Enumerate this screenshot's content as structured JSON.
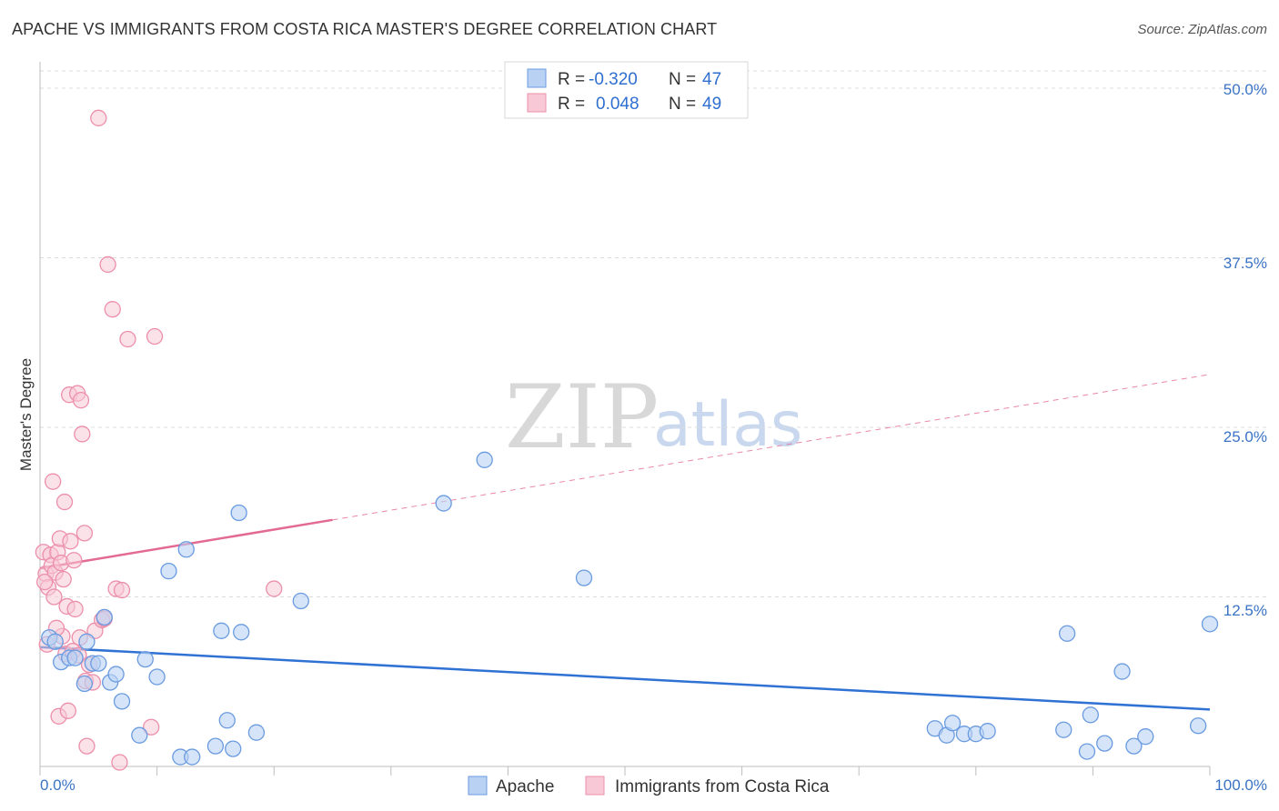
{
  "header": {
    "title": "APACHE VS IMMIGRANTS FROM COSTA RICA MASTER'S DEGREE CORRELATION CHART",
    "source": "Source: ZipAtlas.com"
  },
  "watermark": {
    "zip": "ZIP",
    "atlas": "atlas"
  },
  "legend": {
    "rows": [
      {
        "r_label": "R = ",
        "r_value": "-0.320",
        "n_label": "N = ",
        "n_value": "47"
      },
      {
        "r_label": "R = ",
        "r_value": "0.048",
        "n_label": "N = ",
        "n_value": "49"
      }
    ]
  },
  "chart_data": {
    "type": "scatter",
    "title": "APACHE VS IMMIGRANTS FROM COSTA RICA MASTER'S DEGREE CORRELATION CHART",
    "xlabel": "",
    "ylabel": "Master's Degree",
    "xlim": [
      0,
      100
    ],
    "ylim": [
      0,
      51
    ],
    "x_tick_labels": [
      "0.0%",
      "100.0%"
    ],
    "y_ticks": [
      12.5,
      25.0,
      37.5,
      50.0
    ],
    "y_tick_labels": [
      "12.5%",
      "25.0%",
      "37.5%",
      "50.0%"
    ],
    "grid": true,
    "legend_position": "top-center",
    "colors": {
      "apache_fill": "#b9d2f3",
      "apache_stroke": "#6a9be0",
      "apache_line": "#2f72d4",
      "costa_fill": "#f8c8d6",
      "costa_stroke": "#ec8fab",
      "costa_line": "#e36a93"
    },
    "series": [
      {
        "name": "Apache",
        "r": -0.32,
        "n": 47,
        "trend": {
          "x0": 0,
          "y0": 8.8,
          "x1": 100,
          "y1": 4.2,
          "solid_to": 100
        },
        "points": [
          [
            0.8,
            9.5
          ],
          [
            1.3,
            9.2
          ],
          [
            1.8,
            7.7
          ],
          [
            2.5,
            8.0
          ],
          [
            3.0,
            8.0
          ],
          [
            4.0,
            9.2
          ],
          [
            3.8,
            6.1
          ],
          [
            4.5,
            7.6
          ],
          [
            5.0,
            7.6
          ],
          [
            5.5,
            11.0
          ],
          [
            6.0,
            6.2
          ],
          [
            6.5,
            6.8
          ],
          [
            7.0,
            4.8
          ],
          [
            8.5,
            2.3
          ],
          [
            9.0,
            7.9
          ],
          [
            10.0,
            6.6
          ],
          [
            11.0,
            14.4
          ],
          [
            12.0,
            0.7
          ],
          [
            12.5,
            16.0
          ],
          [
            13.0,
            0.7
          ],
          [
            15.0,
            1.5
          ],
          [
            15.5,
            10.0
          ],
          [
            16.0,
            3.4
          ],
          [
            16.5,
            1.3
          ],
          [
            17.0,
            18.7
          ],
          [
            17.2,
            9.9
          ],
          [
            18.5,
            2.5
          ],
          [
            22.3,
            12.2
          ],
          [
            34.5,
            19.4
          ],
          [
            38.0,
            22.6
          ],
          [
            46.5,
            13.9
          ],
          [
            76.5,
            2.8
          ],
          [
            77.5,
            2.3
          ],
          [
            78.0,
            3.2
          ],
          [
            79.0,
            2.4
          ],
          [
            80.0,
            2.4
          ],
          [
            81.0,
            2.6
          ],
          [
            87.5,
            2.7
          ],
          [
            87.8,
            9.8
          ],
          [
            89.5,
            1.1
          ],
          [
            89.8,
            3.8
          ],
          [
            91.0,
            1.7
          ],
          [
            92.5,
            7.0
          ],
          [
            93.5,
            1.5
          ],
          [
            94.5,
            2.2
          ],
          [
            100.0,
            10.5
          ],
          [
            99.0,
            3.0
          ]
        ]
      },
      {
        "name": "Immigrants from Costa Rica",
        "r": 0.048,
        "n": 49,
        "trend": {
          "x0": 0,
          "y0": 14.6,
          "x1": 100,
          "y1": 28.9,
          "solid_to": 25
        },
        "points": [
          [
            0.3,
            15.8
          ],
          [
            0.5,
            14.2
          ],
          [
            0.7,
            13.2
          ],
          [
            0.9,
            15.6
          ],
          [
            1.0,
            14.8
          ],
          [
            1.1,
            21.0
          ],
          [
            1.2,
            12.5
          ],
          [
            1.3,
            14.3
          ],
          [
            1.5,
            15.8
          ],
          [
            1.7,
            16.8
          ],
          [
            1.8,
            15.0
          ],
          [
            1.9,
            9.6
          ],
          [
            2.0,
            13.8
          ],
          [
            2.1,
            19.5
          ],
          [
            2.2,
            8.3
          ],
          [
            2.3,
            11.8
          ],
          [
            2.5,
            27.4
          ],
          [
            2.6,
            16.6
          ],
          [
            2.8,
            8.5
          ],
          [
            3.0,
            11.6
          ],
          [
            3.2,
            27.5
          ],
          [
            3.3,
            8.2
          ],
          [
            3.5,
            27.0
          ],
          [
            3.6,
            24.5
          ],
          [
            3.8,
            17.2
          ],
          [
            3.9,
            6.3
          ],
          [
            4.0,
            1.5
          ],
          [
            4.2,
            7.5
          ],
          [
            4.5,
            6.2
          ],
          [
            4.7,
            10.0
          ],
          [
            5.0,
            47.8
          ],
          [
            5.3,
            10.8
          ],
          [
            5.5,
            10.9
          ],
          [
            5.8,
            37.0
          ],
          [
            6.2,
            33.7
          ],
          [
            6.5,
            13.1
          ],
          [
            6.8,
            0.3
          ],
          [
            7.0,
            13.0
          ],
          [
            7.5,
            31.5
          ],
          [
            9.5,
            2.9
          ],
          [
            9.8,
            31.7
          ],
          [
            20.0,
            13.1
          ],
          [
            1.6,
            3.7
          ],
          [
            2.4,
            4.1
          ],
          [
            0.6,
            9.0
          ],
          [
            1.4,
            10.2
          ],
          [
            3.4,
            9.5
          ],
          [
            0.4,
            13.6
          ],
          [
            2.9,
            15.2
          ]
        ]
      }
    ]
  },
  "bottom_legend": {
    "items": [
      "Apache",
      "Immigrants from Costa Rica"
    ]
  }
}
